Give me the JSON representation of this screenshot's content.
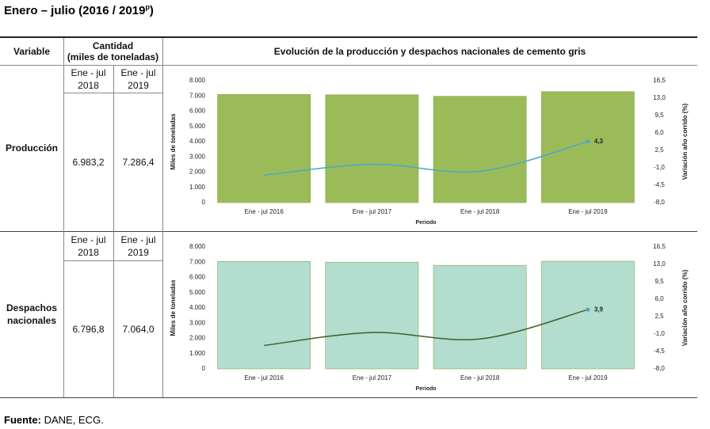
{
  "header": {
    "title": "Enero – julio (2016 / 2019",
    "title_sup": "p",
    "title_end": ")"
  },
  "table": {
    "headers": {
      "variable": "Variable",
      "quantity": "Cantidad",
      "quantity_unit": "(miles de toneladas)",
      "chart": "Evolución de la producción y despachos nacionales de cemento gris"
    },
    "rows": [
      {
        "variable": "Producción",
        "periods": [
          [
            "Ene - jul",
            "2018"
          ],
          [
            "Ene - jul",
            "2019"
          ]
        ],
        "quantities": [
          "6.983,2",
          "7.286,4"
        ],
        "chart": {
          "type": "bar-line",
          "categories": [
            "Ene - jul 2016",
            "Ene - jul 2017",
            "Ene - jul 2018",
            "Ene - jul 2019"
          ],
          "bar_values": [
            7100,
            7080,
            6983.2,
            7286.4
          ],
          "bar_color": "#9bbb59",
          "line_values": [
            -2.5,
            -0.3,
            -1.7,
            4.3
          ],
          "line_value_labels": [
            null,
            null,
            null,
            "4,3"
          ],
          "line_color": "#4ba6c8",
          "ylim": [
            0,
            8000
          ],
          "yticks": [
            0,
            {
              "value": 1000,
              "label": "1.000"
            },
            {
              "value": 2000,
              "label": "2.000"
            },
            {
              "value": 3000,
              "label": "3.000"
            },
            {
              "value": 4000,
              "label": "4.000"
            },
            {
              "value": 5000,
              "label": "5.000"
            },
            {
              "value": 6000,
              "label": "6.000"
            },
            {
              "value": 7000,
              "label": "7.000"
            },
            {
              "value": 8000,
              "label": "8.000"
            }
          ],
          "y2lim": [
            -8,
            16.5
          ],
          "y2ticks": [
            {
              "value": -8,
              "label": "-8,0"
            },
            {
              "value": -4.5,
              "label": "-4,5"
            },
            {
              "value": -1,
              "label": "-1,0"
            },
            {
              "value": 2.5,
              "label": "2,5"
            },
            {
              "value": 6,
              "label": "6,0"
            },
            {
              "value": 9.5,
              "label": "9,5"
            },
            {
              "value": 13,
              "label": "13,0"
            },
            {
              "value": 16.5,
              "label": "16,5"
            }
          ],
          "y_label": "Miles de toneladas",
          "y2_label": "Variación año corrido (%)",
          "x_label": "Periodo"
        }
      },
      {
        "variable": "Despachos nacionales",
        "periods": [
          [
            "Ene - jul",
            "2018"
          ],
          [
            "Ene - jul",
            "2019"
          ]
        ],
        "quantities": [
          "6.796,8",
          "7.064,0"
        ],
        "chart": {
          "type": "bar-line",
          "categories": [
            "Ene - jul 2016",
            "Ene - jul 2017",
            "Ene - jul 2018",
            "Ene - jul 2019"
          ],
          "bar_values": [
            7050,
            7000,
            6796.8,
            7064.0
          ],
          "bar_color": "#b2ddcf",
          "line_values": [
            -3.3,
            -0.7,
            -2.0,
            3.9
          ],
          "line_value_labels": [
            null,
            null,
            null,
            "3,9"
          ],
          "line_color": "#3e5f26",
          "ylim": [
            0,
            8000
          ],
          "yticks": [
            0,
            {
              "value": 1000,
              "label": "1.000"
            },
            {
              "value": 2000,
              "label": "2.000"
            },
            {
              "value": 3000,
              "label": "3.000"
            },
            {
              "value": 4000,
              "label": "4.000"
            },
            {
              "value": 5000,
              "label": "5.000"
            },
            {
              "value": 6000,
              "label": "6.000"
            },
            {
              "value": 7000,
              "label": "7.000"
            },
            {
              "value": 8000,
              "label": "8.000"
            }
          ],
          "y2lim": [
            -8,
            16.5
          ],
          "y2ticks": [
            {
              "value": -8,
              "label": "-8,0"
            },
            {
              "value": -4.5,
              "label": "-4,5"
            },
            {
              "value": -1,
              "label": "-1,0"
            },
            {
              "value": 2.5,
              "label": "2,5"
            },
            {
              "value": 6,
              "label": "6,0"
            },
            {
              "value": 9.5,
              "label": "9,5"
            },
            {
              "value": 13,
              "label": "13,0"
            },
            {
              "value": 16.5,
              "label": "16,5"
            }
          ],
          "y_label": "Miles de toneladas",
          "y2_label": "Variación año corrido (%)",
          "x_label": "Periodo"
        }
      }
    ]
  },
  "footer": {
    "label": "Fuente:",
    "text": "DANE, ECG."
  }
}
